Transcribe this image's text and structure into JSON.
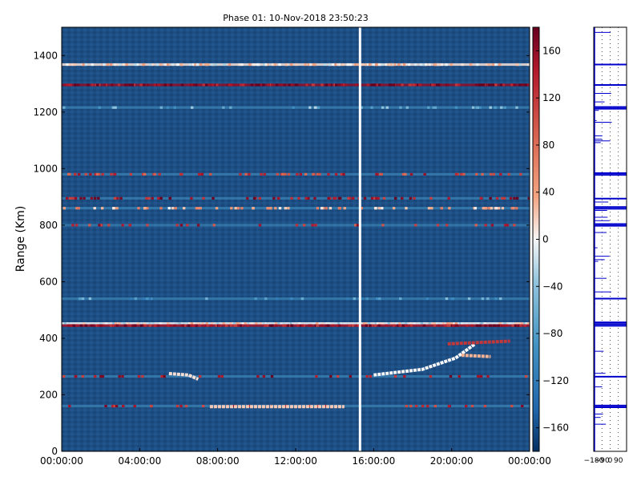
{
  "chart_data": {
    "type": "heatmap",
    "title": "Phase 01: 10-Nov-2018 23:50:23",
    "ylabel": "Range (Km)",
    "xlabel": "",
    "x_ticks": [
      "00:00:00",
      "04:00:00",
      "08:00:00",
      "12:00:00",
      "16:00:00",
      "20:00:00",
      "00:00:00"
    ],
    "y_ticks": [
      "0",
      "200",
      "400",
      "600",
      "800",
      "1000",
      "1200",
      "1400"
    ],
    "ylim": [
      0,
      1500
    ],
    "xlim_hours": [
      0,
      24
    ],
    "colorbar": {
      "ticks": [
        "160",
        "120",
        "80",
        "40",
        "0",
        "−40",
        "−80",
        "−120",
        "−160"
      ],
      "range": [
        -180,
        180
      ],
      "colormap": "RdBu_r"
    },
    "side_profile": {
      "ticks": [
        "−180",
        "−90",
        "0",
        "90"
      ],
      "range": [
        -180,
        180
      ]
    },
    "background_value": -150,
    "horizontal_bands": [
      {
        "range_km": 1368,
        "value": 10,
        "strength": "strong"
      },
      {
        "range_km": 1296,
        "value": 160,
        "strength": "strong"
      },
      {
        "range_km": 1216,
        "value": -60,
        "strength": "weak"
      },
      {
        "range_km": 980,
        "value": 120,
        "strength": "medium"
      },
      {
        "range_km": 895,
        "value": 150,
        "strength": "medium"
      },
      {
        "range_km": 860,
        "value": 40,
        "strength": "medium"
      },
      {
        "range_km": 800,
        "value": 130,
        "strength": "weak"
      },
      {
        "range_km": 540,
        "value": -80,
        "strength": "weak"
      },
      {
        "range_km": 452,
        "value": 0,
        "strength": "strong"
      },
      {
        "range_km": 445,
        "value": 150,
        "strength": "strong"
      },
      {
        "range_km": 265,
        "value": 140,
        "strength": "weak"
      },
      {
        "range_km": 160,
        "value": 140,
        "strength": "weak"
      }
    ],
    "traces": [
      {
        "points": [
          [
            5.5,
            275
          ],
          [
            6.5,
            270
          ],
          [
            7.0,
            255
          ]
        ],
        "value": 10
      },
      {
        "points": [
          [
            7.6,
            158
          ],
          [
            14.5,
            158
          ]
        ],
        "value": 20
      },
      {
        "points": [
          [
            16.0,
            270
          ],
          [
            18.5,
            290
          ],
          [
            20.2,
            330
          ],
          [
            21.2,
            380
          ]
        ],
        "value": 0
      },
      {
        "points": [
          [
            19.8,
            380
          ],
          [
            23.0,
            390
          ]
        ],
        "value": 120
      },
      {
        "points": [
          [
            20.5,
            340
          ],
          [
            22.0,
            335
          ]
        ],
        "value": 30
      }
    ],
    "gaps_hours": [
      15.3
    ]
  }
}
